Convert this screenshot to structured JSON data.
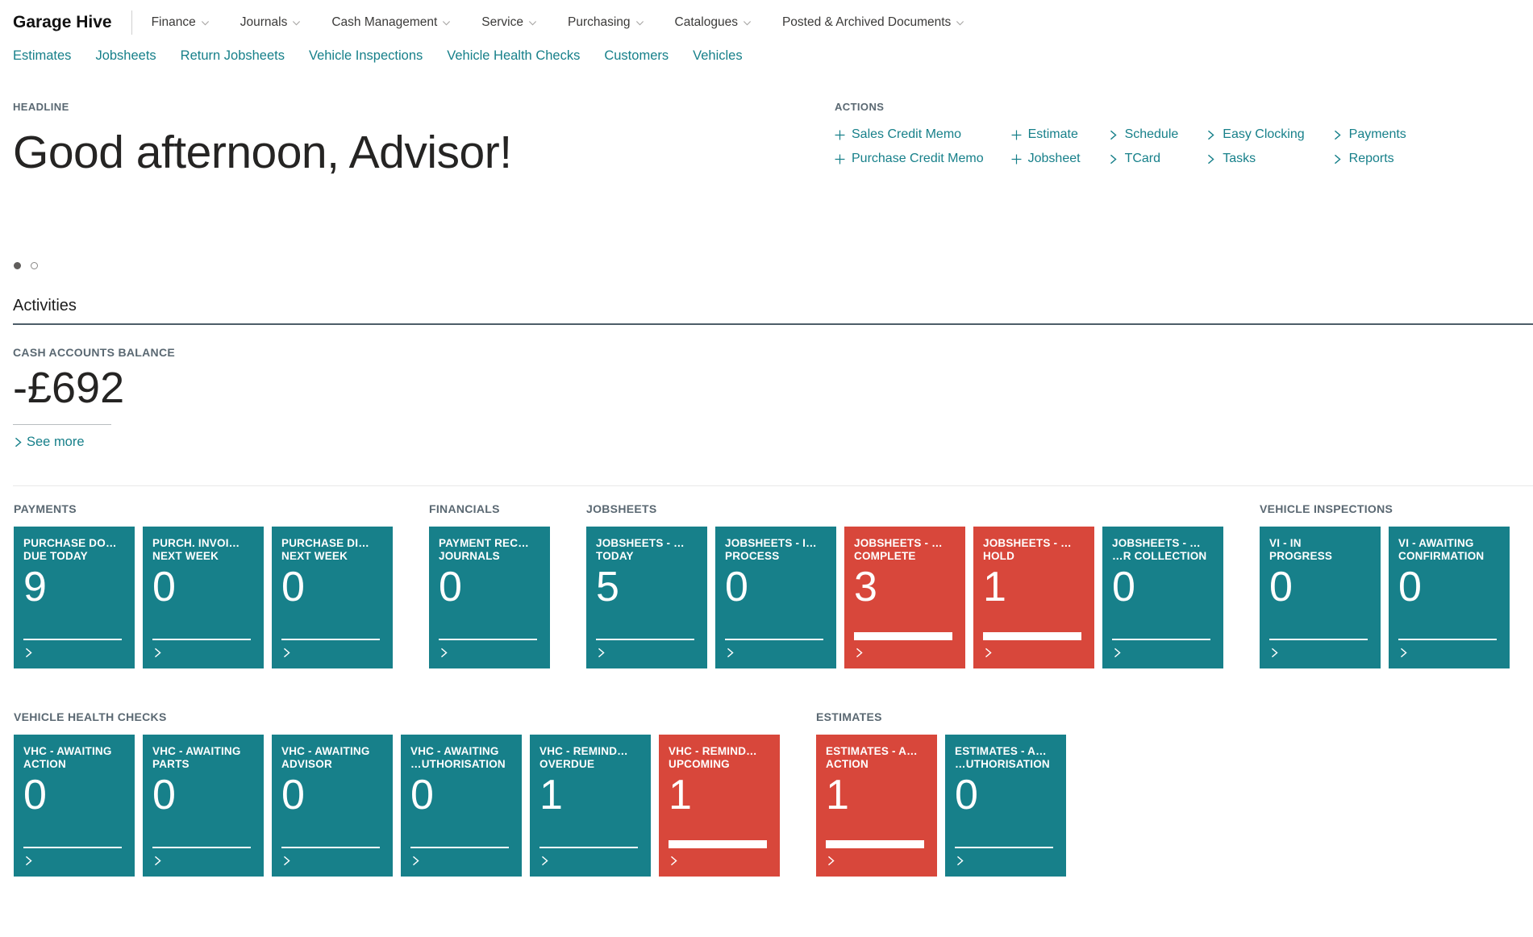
{
  "brand": "Garage Hive",
  "top_nav": [
    {
      "label": "Finance"
    },
    {
      "label": "Journals"
    },
    {
      "label": "Cash Management"
    },
    {
      "label": "Service"
    },
    {
      "label": "Purchasing"
    },
    {
      "label": "Catalogues"
    },
    {
      "label": "Posted & Archived Documents"
    }
  ],
  "sub_nav": [
    "Estimates",
    "Jobsheets",
    "Return Jobsheets",
    "Vehicle Inspections",
    "Vehicle Health Checks",
    "Customers",
    "Vehicles"
  ],
  "headline": {
    "label": "HEADLINE",
    "greeting": "Good afternoon, Advisor!"
  },
  "actions": {
    "label": "ACTIONS",
    "columns": [
      [
        {
          "icon": "plus",
          "label": "Sales Credit Memo"
        },
        {
          "icon": "plus",
          "label": "Purchase Credit Memo"
        }
      ],
      [
        {
          "icon": "plus",
          "label": "Estimate"
        },
        {
          "icon": "plus",
          "label": "Jobsheet"
        }
      ],
      [
        {
          "icon": "chevron",
          "label": "Schedule"
        },
        {
          "icon": "chevron",
          "label": "TCard"
        }
      ],
      [
        {
          "icon": "chevron",
          "label": "Easy Clocking"
        },
        {
          "icon": "chevron",
          "label": "Tasks"
        }
      ],
      [
        {
          "icon": "chevron",
          "label": "Payments"
        },
        {
          "icon": "chevron",
          "label": "Reports"
        }
      ]
    ]
  },
  "carousel": {
    "dots": [
      {
        "active": true
      },
      {
        "active": false
      }
    ]
  },
  "activities": {
    "title": "Activities",
    "cash_balance": {
      "label": "CASH ACCOUNTS BALANCE",
      "value": "-£692",
      "see_more": "See more"
    }
  },
  "tile_rows": [
    {
      "groups": [
        {
          "caption": "PAYMENTS",
          "tiles": [
            {
              "label": [
                "PURCHASE DO…",
                "DUE TODAY"
              ],
              "value": "9",
              "variant": "teal"
            },
            {
              "label": [
                "PURCH. INVOI…",
                "NEXT WEEK"
              ],
              "value": "0",
              "variant": "teal"
            },
            {
              "label": [
                "PURCHASE DI…",
                "NEXT WEEK"
              ],
              "value": "0",
              "variant": "teal"
            }
          ]
        },
        {
          "caption": "FINANCIALS",
          "tiles": [
            {
              "label": [
                "PAYMENT REC…",
                "JOURNALS"
              ],
              "value": "0",
              "variant": "teal"
            }
          ]
        },
        {
          "caption": "JOBSHEETS",
          "tiles": [
            {
              "label": [
                "JOBSHEETS - …",
                "TODAY"
              ],
              "value": "5",
              "variant": "teal"
            },
            {
              "label": [
                "JOBSHEETS - I…",
                "PROCESS"
              ],
              "value": "0",
              "variant": "teal"
            },
            {
              "label": [
                "JOBSHEETS - …",
                "COMPLETE"
              ],
              "value": "3",
              "variant": "red"
            },
            {
              "label": [
                "JOBSHEETS - …",
                "HOLD"
              ],
              "value": "1",
              "variant": "red"
            },
            {
              "label": [
                "JOBSHEETS - …",
                "…R COLLECTION"
              ],
              "value": "0",
              "variant": "teal"
            }
          ]
        },
        {
          "caption": "VEHICLE INSPECTIONS",
          "tiles": [
            {
              "label": [
                "VI - IN",
                "PROGRESS"
              ],
              "value": "0",
              "variant": "teal"
            },
            {
              "label": [
                "VI - AWAITING",
                "CONFIRMATION"
              ],
              "value": "0",
              "variant": "teal"
            }
          ]
        }
      ]
    },
    {
      "groups": [
        {
          "caption": "VEHICLE HEALTH CHECKS",
          "tiles": [
            {
              "label": [
                "VHC - AWAITING",
                "ACTION"
              ],
              "value": "0",
              "variant": "teal"
            },
            {
              "label": [
                "VHC - AWAITING",
                "PARTS"
              ],
              "value": "0",
              "variant": "teal"
            },
            {
              "label": [
                "VHC - AWAITING",
                "ADVISOR"
              ],
              "value": "0",
              "variant": "teal"
            },
            {
              "label": [
                "VHC - AWAITING",
                "…UTHORISATION"
              ],
              "value": "0",
              "variant": "teal"
            },
            {
              "label": [
                "VHC - REMIND…",
                "OVERDUE"
              ],
              "value": "1",
              "variant": "teal"
            },
            {
              "label": [
                "VHC - REMIND…",
                "UPCOMING"
              ],
              "value": "1",
              "variant": "red"
            }
          ]
        },
        {
          "caption": "ESTIMATES",
          "tiles": [
            {
              "label": [
                "ESTIMATES - A…",
                "ACTION"
              ],
              "value": "1",
              "variant": "red"
            },
            {
              "label": [
                "ESTIMATES - A…",
                "…UTHORISATION"
              ],
              "value": "0",
              "variant": "teal"
            }
          ]
        }
      ]
    }
  ],
  "colors": {
    "teal": "#17808a",
    "red": "#d8473b",
    "link": "#17808a"
  }
}
